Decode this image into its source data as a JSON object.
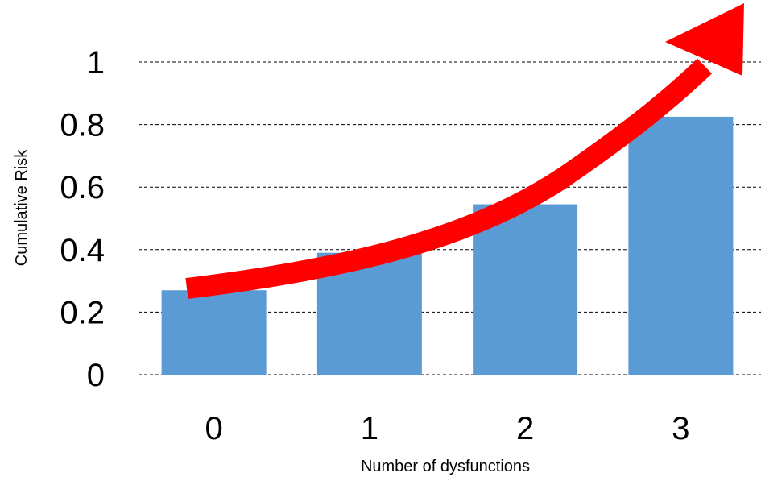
{
  "chart_data": {
    "type": "bar",
    "categories": [
      "0",
      "1",
      "2",
      "3"
    ],
    "values": [
      0.27,
      0.39,
      0.545,
      0.825
    ],
    "title": "",
    "xlabel": "Number of dysfunctions",
    "ylabel": "Cumulative Risk",
    "ylim": [
      0,
      1
    ],
    "yticks": [
      "0",
      "0.2",
      "0.4",
      "0.6",
      "0.8",
      "1"
    ],
    "grid": true,
    "bar_color": "#5B9BD5",
    "overlay": {
      "type": "trend-arrow",
      "color": "#FF0000",
      "direction": "increasing"
    }
  }
}
